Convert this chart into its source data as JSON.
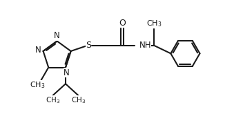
{
  "bg_color": "#ffffff",
  "line_color": "#1a1a1a",
  "line_width": 1.5,
  "font_size": 8.5,
  "xlim": [
    0,
    9.5
  ],
  "ylim": [
    0,
    5.2
  ],
  "figsize": [
    3.52,
    1.78
  ],
  "dpi": 100
}
